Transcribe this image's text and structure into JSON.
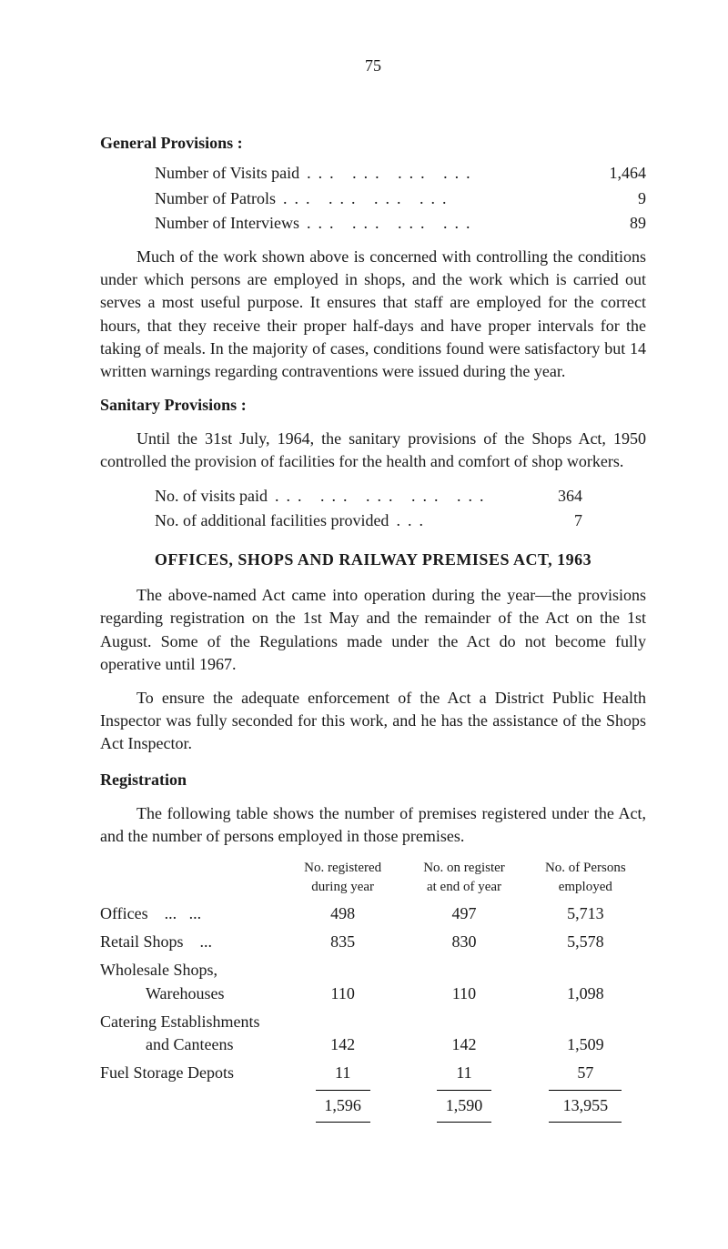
{
  "page_number": "75",
  "general_provisions": {
    "heading": "General Provisions :",
    "stats": [
      {
        "label": "Number of Visits paid",
        "value": "1,464"
      },
      {
        "label": "Number of Patrols",
        "value": "9"
      },
      {
        "label": "Number of Interviews",
        "value": "89"
      }
    ],
    "paragraph": "Much of the work shown above is concerned with controlling the conditions under which persons are employed in shops, and the work which is carried out serves a most useful purpose. It ensures that staff are employed for the correct hours, that they receive their proper half-days and have proper intervals for the taking of meals. In the majority of cases, conditions found were satisfactory but 14 written warnings regarding contraventions were issued during the year."
  },
  "sanitary_provisions": {
    "heading": "Sanitary Provisions :",
    "paragraph": "Until the 31st July, 1964, the sanitary provisions of the Shops Act, 1950 controlled the provision of facilities for the health and comfort of shop workers.",
    "stats": [
      {
        "label": "No. of visits paid",
        "value": "364"
      },
      {
        "label": "No. of additional facilities provided",
        "value": "7"
      }
    ]
  },
  "offices_act": {
    "heading": "OFFICES, SHOPS AND RAILWAY PREMISES ACT, 1963",
    "paragraph1": "The above-named Act came into operation during the year—the provisions regarding registration on the 1st May and the remainder of the Act on the 1st August. Some of the Regulations made under the Act do not become fully operative until 1967.",
    "paragraph2": "To ensure the adequate enforcement of the Act a District Public Health Inspector was fully seconded for this work, and he has the assistance of the Shops Act Inspector."
  },
  "registration": {
    "heading": "Registration",
    "paragraph": "The following table shows the number of premises registered under the Act, and the number of persons employed in those premises.",
    "headers": {
      "col1_line1": "No. registered",
      "col1_line2": "during year",
      "col2_line1": "No. on register",
      "col2_line2": "at end of year",
      "col3_line1": "No. of Persons",
      "col3_line2": "employed"
    },
    "rows": [
      {
        "label": "Offices",
        "col1": "498",
        "col2": "497",
        "col3": "5,713"
      },
      {
        "label": "Retail Shops",
        "col1": "835",
        "col2": "830",
        "col3": "5,578"
      },
      {
        "label_line1": "Wholesale Shops,",
        "label_line2": "Warehouses",
        "col1": "110",
        "col2": "110",
        "col3": "1,098"
      },
      {
        "label_line1": "Catering Establishments",
        "label_line2": "and Canteens",
        "col1": "142",
        "col2": "142",
        "col3": "1,509"
      },
      {
        "label": "Fuel Storage Depots",
        "col1": "11",
        "col2": "11",
        "col3": "57"
      }
    ],
    "totals": {
      "col1": "1,596",
      "col2": "1,590",
      "col3": "13,955"
    }
  }
}
